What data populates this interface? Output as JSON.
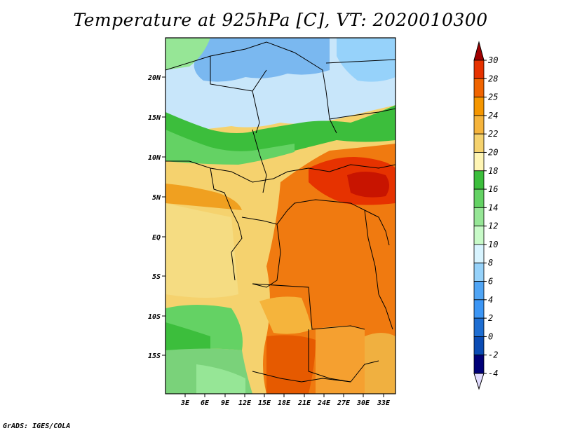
{
  "title": "Temperature at 925hPa [C], VT: 2020010300",
  "credit": "GrADS: IGES/COLA",
  "lat_labels": [
    "20N",
    "15N",
    "10N",
    "5N",
    "EQ",
    "5S",
    "10S",
    "15S"
  ],
  "lon_labels": [
    "3E",
    "6E",
    "9E",
    "12E",
    "15E",
    "18E",
    "21E",
    "24E",
    "27E",
    "30E",
    "33E"
  ],
  "colorbar": {
    "levels": [
      "30",
      "28",
      "25",
      "24",
      "22",
      "20",
      "18",
      "16",
      "14",
      "12",
      "10",
      "8",
      "6",
      "4",
      "2",
      "0",
      "-2",
      "-4"
    ],
    "colors_top_to_bottom": [
      "#a00000",
      "#e63200",
      "#f06400",
      "#f59600",
      "#f5b43c",
      "#f5d26e",
      "#fff5b4",
      "#3cbe3c",
      "#64d264",
      "#96e696",
      "#c8fac8",
      "#d8f4ff",
      "#96d2fa",
      "#50a5f5",
      "#3c96f5",
      "#1e6ed2",
      "#0a4bb4",
      "#000078",
      "#e1dcff"
    ]
  }
}
